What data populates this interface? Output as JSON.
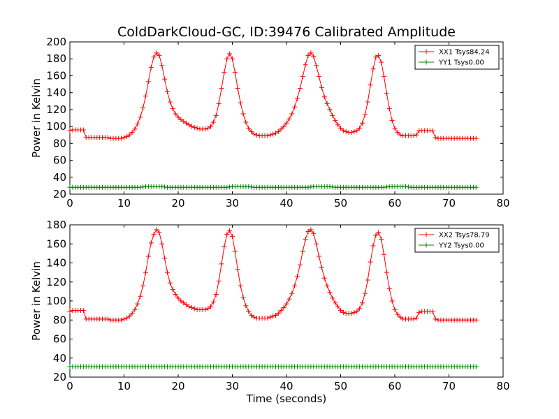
{
  "chart_data": {
    "title": "ColdDarkCloud-GC, ID:39476 Calibrated Amplitude",
    "panels": [
      {
        "type": "line",
        "xlabel": "",
        "ylabel": "Power in Kelvin",
        "xlim": [
          0,
          80
        ],
        "ylim": [
          20,
          200
        ],
        "xticks": [
          0,
          10,
          20,
          30,
          40,
          50,
          60,
          70,
          80
        ],
        "yticks": [
          20,
          40,
          60,
          80,
          100,
          120,
          140,
          160,
          180,
          200
        ],
        "legend_position": "top-right",
        "grid": false,
        "marker": "+",
        "series": [
          {
            "name": "XX1 Tsys84.24",
            "color": "#ff0000",
            "x": [
              0,
              0.5,
              1,
              1.5,
              2,
              2.5,
              3,
              3.5,
              4,
              4.5,
              5,
              5.5,
              6,
              6.5,
              7,
              7.5,
              8,
              8.5,
              9,
              9.5,
              10,
              10.5,
              11,
              11.5,
              12,
              12.5,
              13,
              13.5,
              14,
              14.5,
              15,
              15.5,
              16,
              16.5,
              17,
              17.5,
              18,
              18.5,
              19,
              19.5,
              20,
              20.5,
              21,
              21.5,
              22,
              22.5,
              23,
              23.5,
              24,
              24.5,
              25,
              25.5,
              26,
              26.5,
              27,
              27.5,
              28,
              28.5,
              29,
              29.5,
              30,
              30.5,
              31,
              31.5,
              32,
              32.5,
              33,
              33.5,
              34,
              34.5,
              35,
              35.5,
              36,
              36.5,
              37,
              37.5,
              38,
              38.5,
              39,
              39.5,
              40,
              40.5,
              41,
              41.5,
              42,
              42.5,
              43,
              43.5,
              44,
              44.5,
              45,
              45.5,
              46,
              46.5,
              47,
              47.5,
              48,
              48.5,
              49,
              49.5,
              50,
              50.5,
              51,
              51.5,
              52,
              52.5,
              53,
              53.5,
              54,
              54.5,
              55,
              55.5,
              56,
              56.5,
              57,
              57.5,
              58,
              58.5,
              59,
              59.5,
              60,
              60.5,
              61,
              61.5,
              62,
              62.5,
              63,
              63.5,
              64,
              64.5,
              65,
              65.5,
              66,
              66.5,
              67,
              67.5,
              68,
              68.5,
              69,
              69.5,
              70,
              70.5,
              71,
              71.5,
              72,
              72.5,
              73,
              73.5,
              74,
              74.5,
              75
            ],
            "y": [
              95,
              96,
              96,
              96,
              96,
              96,
              87,
              87,
              87,
              87,
              87,
              87,
              87,
              87,
              87,
              86,
              86,
              86,
              86,
              86,
              87,
              88,
              90,
              93,
              97,
              103,
              111,
              122,
              136,
              153,
              170,
              182,
              187,
              184,
              172,
              156,
              141,
              129,
              121,
              115,
              111,
              108,
              106,
              104,
              102,
              100,
              99,
              98,
              97,
              97,
              97,
              98,
              100,
              105,
              113,
              127,
              145,
              164,
              180,
              186,
              180,
              164,
              145,
              128,
              115,
              105,
              98,
              94,
              91,
              90,
              89,
              89,
              89,
              89,
              90,
              91,
              92,
              94,
              97,
              100,
              104,
              109,
              115,
              123,
              133,
              145,
              159,
              173,
              184,
              187,
              183,
              172,
              159,
              146,
              135,
              127,
              120,
              113,
              107,
              102,
              98,
              95,
              94,
              93,
              93,
              94,
              95,
              98,
              104,
              114,
              129,
              149,
              168,
              182,
              184,
              176,
              159,
              139,
              121,
              107,
              98,
              93,
              90,
              89,
              89,
              89,
              89,
              89,
              90,
              95,
              95,
              95,
              95,
              95,
              95,
              87,
              86,
              86,
              86,
              86,
              86,
              86,
              86,
              86,
              86,
              86,
              86,
              86,
              86,
              86,
              86
            ]
          },
          {
            "name": "YY1 Tsys0.00",
            "color": "#008000",
            "x": [
              0,
              75
            ],
            "y": [
              28,
              28
            ],
            "description_points": [
              [
                0,
                28
              ],
              [
                13,
                28
              ],
              [
                14,
                29
              ],
              [
                17,
                29
              ],
              [
                18,
                28
              ],
              [
                29,
                28
              ],
              [
                30,
                29
              ],
              [
                33,
                29
              ],
              [
                34,
                28
              ],
              [
                44,
                28
              ],
              [
                45,
                29
              ],
              [
                48,
                29
              ],
              [
                49,
                28
              ],
              [
                58,
                28
              ],
              [
                59,
                29
              ],
              [
                62,
                29
              ],
              [
                63,
                28
              ],
              [
                75,
                28
              ]
            ]
          }
        ]
      },
      {
        "type": "line",
        "xlabel": "Time (seconds)",
        "ylabel": "Power in Kelvin",
        "xlim": [
          0,
          80
        ],
        "ylim": [
          20,
          180
        ],
        "xticks": [
          0,
          10,
          20,
          30,
          40,
          50,
          60,
          70,
          80
        ],
        "yticks": [
          20,
          40,
          60,
          80,
          100,
          120,
          140,
          160,
          180
        ],
        "legend_position": "top-right",
        "grid": false,
        "marker": "+",
        "series": [
          {
            "name": "XX2 Tsys78.79",
            "color": "#ff0000",
            "x": [
              0,
              0.5,
              1,
              1.5,
              2,
              2.5,
              3,
              3.5,
              4,
              4.5,
              5,
              5.5,
              6,
              6.5,
              7,
              7.5,
              8,
              8.5,
              9,
              9.5,
              10,
              10.5,
              11,
              11.5,
              12,
              12.5,
              13,
              13.5,
              14,
              14.5,
              15,
              15.5,
              16,
              16.5,
              17,
              17.5,
              18,
              18.5,
              19,
              19.5,
              20,
              20.5,
              21,
              21.5,
              22,
              22.5,
              23,
              23.5,
              24,
              24.5,
              25,
              25.5,
              26,
              26.5,
              27,
              27.5,
              28,
              28.5,
              29,
              29.5,
              30,
              30.5,
              31,
              31.5,
              32,
              32.5,
              33,
              33.5,
              34,
              34.5,
              35,
              35.5,
              36,
              36.5,
              37,
              37.5,
              38,
              38.5,
              39,
              39.5,
              40,
              40.5,
              41,
              41.5,
              42,
              42.5,
              43,
              43.5,
              44,
              44.5,
              45,
              45.5,
              46,
              46.5,
              47,
              47.5,
              48,
              48.5,
              49,
              49.5,
              50,
              50.5,
              51,
              51.5,
              52,
              52.5,
              53,
              53.5,
              54,
              54.5,
              55,
              55.5,
              56,
              56.5,
              57,
              57.5,
              58,
              58.5,
              59,
              59.5,
              60,
              60.5,
              61,
              61.5,
              62,
              62.5,
              63,
              63.5,
              64,
              64.5,
              65,
              65.5,
              66,
              66.5,
              67,
              67.5,
              68,
              68.5,
              69,
              69.5,
              70,
              70.5,
              71,
              71.5,
              72,
              72.5,
              73,
              73.5,
              74,
              74.5,
              75
            ],
            "y": [
              89,
              90,
              90,
              90,
              90,
              90,
              81,
              81,
              81,
              81,
              81,
              81,
              81,
              81,
              81,
              80,
              80,
              80,
              80,
              80,
              81,
              82,
              84,
              87,
              91,
              97,
              105,
              116,
              130,
              147,
              161,
              170,
              175,
              172,
              160,
              145,
              130,
              119,
              112,
              107,
              103,
              100,
              98,
              96,
              94,
              93,
              92,
              91,
              91,
              91,
              91,
              92,
              94,
              99,
              107,
              121,
              139,
              157,
              170,
              174,
              168,
              152,
              133,
              116,
              104,
              95,
              89,
              85,
              83,
              82,
              82,
              82,
              82,
              82,
              83,
              84,
              85,
              87,
              90,
              93,
              97,
              102,
              108,
              116,
              126,
              138,
              152,
              165,
              173,
              175,
              171,
              160,
              147,
              135,
              124,
              116,
              109,
              103,
              98,
              94,
              90,
              88,
              87,
              87,
              87,
              88,
              89,
              92,
              98,
              108,
              122,
              141,
              158,
              169,
              172,
              165,
              149,
              130,
              113,
              100,
              91,
              86,
              83,
              81,
              81,
              81,
              81,
              81,
              82,
              88,
              89,
              89,
              89,
              89,
              89,
              81,
              80,
              80,
              80,
              80,
              80,
              80,
              80,
              80,
              80,
              80,
              80,
              80,
              80,
              80,
              80
            ]
          },
          {
            "name": "YY2 Tsys0.00",
            "color": "#008000",
            "x": [
              0,
              75
            ],
            "y": [
              31,
              31
            ]
          }
        ]
      }
    ]
  }
}
